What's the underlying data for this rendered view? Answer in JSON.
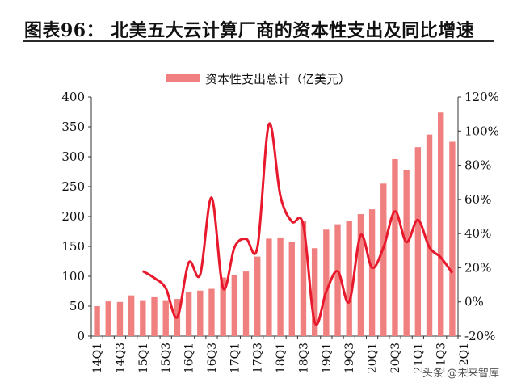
{
  "header": {
    "title": "图表96：    北美五大云计算厂商的资本性支出及同比增速"
  },
  "watermark": "头条 @未来智库",
  "chart_data": {
    "type": "bar",
    "title": "",
    "legend": {
      "label": "资本性支出总计（亿美元）",
      "placement": "top"
    },
    "categories": [
      "14Q1",
      "14Q2",
      "14Q3",
      "14Q4",
      "15Q1",
      "15Q2",
      "15Q3",
      "15Q4",
      "16Q1",
      "16Q2",
      "16Q3",
      "16Q4",
      "17Q1",
      "17Q2",
      "17Q3",
      "17Q4",
      "18Q1",
      "18Q2",
      "18Q3",
      "18Q4",
      "19Q1",
      "19Q2",
      "19Q3",
      "19Q4",
      "20Q1",
      "20Q2",
      "20Q3",
      "20Q4",
      "21Q1",
      "21Q2",
      "21Q3",
      "21Q4"
    ],
    "x_tick_labels": [
      "14Q1",
      "14Q3",
      "15Q1",
      "15Q3",
      "16Q1",
      "16Q3",
      "17Q1",
      "17Q3",
      "18Q1",
      "18Q3",
      "19Q1",
      "19Q3",
      "20Q1",
      "20Q3",
      "21Q1",
      "21Q3",
      "22Q1"
    ],
    "series": [
      {
        "name": "资本性支出总计（亿美元）",
        "type": "bar",
        "axis": "left",
        "color": "#f08080",
        "values": [
          50,
          58,
          57,
          68,
          60,
          65,
          60,
          62,
          74,
          76,
          79,
          98,
          102,
          108,
          133,
          163,
          165,
          158,
          192,
          147,
          178,
          187,
          192,
          204,
          212,
          255,
          296,
          278,
          316,
          337,
          374,
          325
        ]
      },
      {
        "name": "同比增速",
        "type": "line",
        "axis": "right",
        "color": "#e8192c",
        "values": [
          null,
          null,
          null,
          null,
          18,
          14,
          8,
          -9,
          23,
          16,
          61,
          8,
          32,
          37,
          32,
          104,
          62,
          47,
          45,
          -12,
          6,
          18,
          0,
          39,
          20,
          32,
          53,
          35,
          48,
          32,
          26,
          17
        ]
      }
    ],
    "y_left": {
      "ylim": [
        0,
        400
      ],
      "ticks": [
        0,
        50,
        100,
        150,
        200,
        250,
        300,
        350,
        400
      ]
    },
    "y_right": {
      "ylim": [
        -20,
        120
      ],
      "ticks": [
        -20,
        0,
        20,
        40,
        60,
        80,
        100,
        120
      ],
      "format": "percent"
    },
    "grid": false
  }
}
